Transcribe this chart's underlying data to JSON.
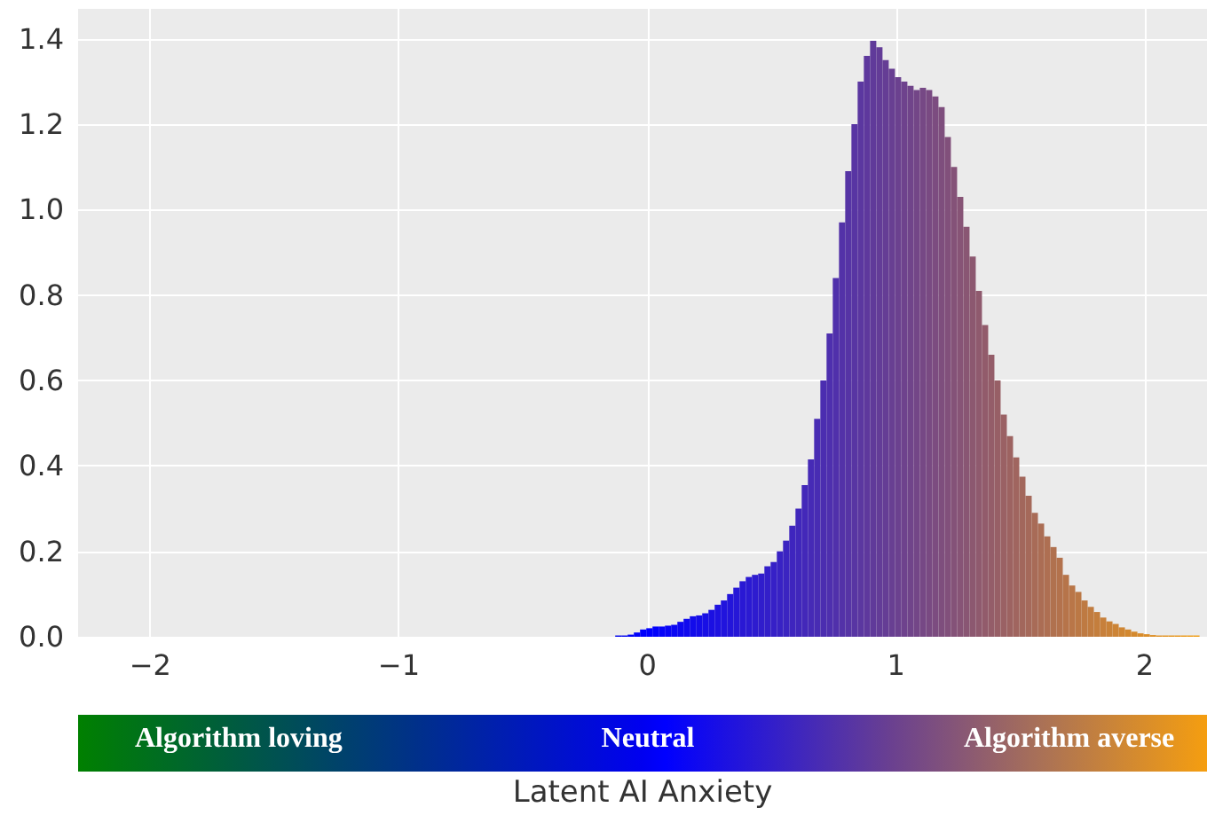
{
  "chart_data": {
    "type": "histogram",
    "xlabel": "Latent AI Anxiety",
    "annotations": [
      "Algorithm loving",
      "Neutral",
      "Algorithm averse"
    ],
    "bins": [
      -0.13,
      -0.105,
      -0.08,
      -0.055,
      -0.03,
      -0.005,
      0.02,
      0.045,
      0.07,
      0.095,
      0.12,
      0.145,
      0.17,
      0.195,
      0.22,
      0.245,
      0.27,
      0.295,
      0.32,
      0.345,
      0.37,
      0.395,
      0.42,
      0.445,
      0.47,
      0.495,
      0.52,
      0.545,
      0.57,
      0.595,
      0.62,
      0.645,
      0.67,
      0.695,
      0.72,
      0.745,
      0.77,
      0.795,
      0.82,
      0.845,
      0.87,
      0.895,
      0.92,
      0.945,
      0.97,
      0.995,
      1.02,
      1.045,
      1.07,
      1.095,
      1.12,
      1.145,
      1.17,
      1.195,
      1.22,
      1.245,
      1.27,
      1.295,
      1.32,
      1.345,
      1.37,
      1.395,
      1.42,
      1.445,
      1.47,
      1.495,
      1.52,
      1.545,
      1.57,
      1.595,
      1.62,
      1.645,
      1.67,
      1.695,
      1.72,
      1.745,
      1.77,
      1.795,
      1.82,
      1.845,
      1.87,
      1.895,
      1.92,
      1.945,
      1.97,
      1.995,
      2.02,
      2.045,
      2.07,
      2.095,
      2.12,
      2.145,
      2.17,
      2.195,
      2.22
    ],
    "values": [
      0.003,
      0.003,
      0.005,
      0.01,
      0.017,
      0.02,
      0.024,
      0.024,
      0.026,
      0.028,
      0.035,
      0.042,
      0.048,
      0.05,
      0.055,
      0.063,
      0.075,
      0.085,
      0.1,
      0.115,
      0.13,
      0.14,
      0.145,
      0.148,
      0.165,
      0.175,
      0.2,
      0.225,
      0.26,
      0.3,
      0.355,
      0.415,
      0.51,
      0.6,
      0.71,
      0.84,
      0.97,
      1.09,
      1.2,
      1.3,
      1.36,
      1.395,
      1.38,
      1.35,
      1.33,
      1.31,
      1.3,
      1.29,
      1.28,
      1.285,
      1.28,
      1.265,
      1.24,
      1.17,
      1.1,
      1.03,
      0.96,
      0.89,
      0.81,
      0.73,
      0.66,
      0.6,
      0.52,
      0.47,
      0.42,
      0.375,
      0.33,
      0.29,
      0.265,
      0.235,
      0.21,
      0.185,
      0.145,
      0.12,
      0.105,
      0.085,
      0.07,
      0.058,
      0.045,
      0.036,
      0.03,
      0.022,
      0.017,
      0.012,
      0.008,
      0.006,
      0.004,
      0.003,
      0.003,
      0.003,
      0.003,
      0.003,
      0.003,
      0.003
    ],
    "colors": [
      "#0005eb",
      "#0004f0",
      "#0003f5",
      "#0002fa",
      "#0000fd",
      "#0100fe",
      "#0302fb",
      "#0604f9",
      "#0905f6",
      "#0b07f3",
      "#0e08f0",
      "#110aee",
      "#130ceb",
      "#160de8",
      "#190fe5",
      "#1b10e2",
      "#1e12e0",
      "#2114dd",
      "#2315da",
      "#2617d7",
      "#2918d4",
      "#2b1ad2",
      "#2e1ccf",
      "#301dcc",
      "#331fc9",
      "#3620c7",
      "#3822c4",
      "#3b24c1",
      "#3e25be",
      "#4027bb",
      "#4328b9",
      "#462ab6",
      "#482cb3",
      "#4b2db0",
      "#4e2fae",
      "#5030ab",
      "#5332a8",
      "#5634a5",
      "#5835a3",
      "#5b37a0",
      "#5e389d",
      "#603a9a",
      "#633c97",
      "#653d95",
      "#683f92",
      "#6b418f",
      "#6e428d",
      "#70448a",
      "#734687",
      "#764885",
      "#794a82",
      "#7c4c80",
      "#7e4e7d",
      "#81507b",
      "#845278",
      "#875476",
      "#895673",
      "#8c5870",
      "#8f5a6e",
      "#925b6b",
      "#945d69",
      "#975f66",
      "#9a6164",
      "#9d6361",
      "#a0655f",
      "#a2675c",
      "#a5695a",
      "#a86b57",
      "#ab6d54",
      "#ae6f52",
      "#b0714f",
      "#b3724d",
      "#b6744a",
      "#b97648",
      "#bb7845",
      "#be7a42",
      "#c17c40",
      "#c47e3d",
      "#c7803b",
      "#c98238",
      "#cc8436",
      "#cf8633",
      "#d28830",
      "#d4892e",
      "#d78b2b",
      "#da8d29",
      "#dd8f26",
      "#e09124",
      "#e29321",
      "#e5951f",
      "#e8971c",
      "#eb9919",
      "#ee9b17",
      "#f09d14"
    ],
    "xlim": [
      -2.29,
      2.25
    ],
    "xticks": [
      {
        "value": -2,
        "label": "−2"
      },
      {
        "value": -1,
        "label": "−1"
      },
      0,
      1,
      2
    ],
    "ylim": [
      0,
      1.47
    ],
    "yticks": [
      {
        "value": 0,
        "label": "0.0"
      },
      {
        "value": 0.2,
        "label": "0.2"
      },
      {
        "value": 0.4,
        "label": "0.4"
      },
      {
        "value": 0.6,
        "label": "0.6"
      },
      {
        "value": 0.8,
        "label": "0.8"
      },
      {
        "value": 1,
        "label": "1.0"
      },
      {
        "value": 1.2,
        "label": "1.2"
      },
      {
        "value": 1.4,
        "label": "1.4"
      }
    ],
    "grid": true
  }
}
